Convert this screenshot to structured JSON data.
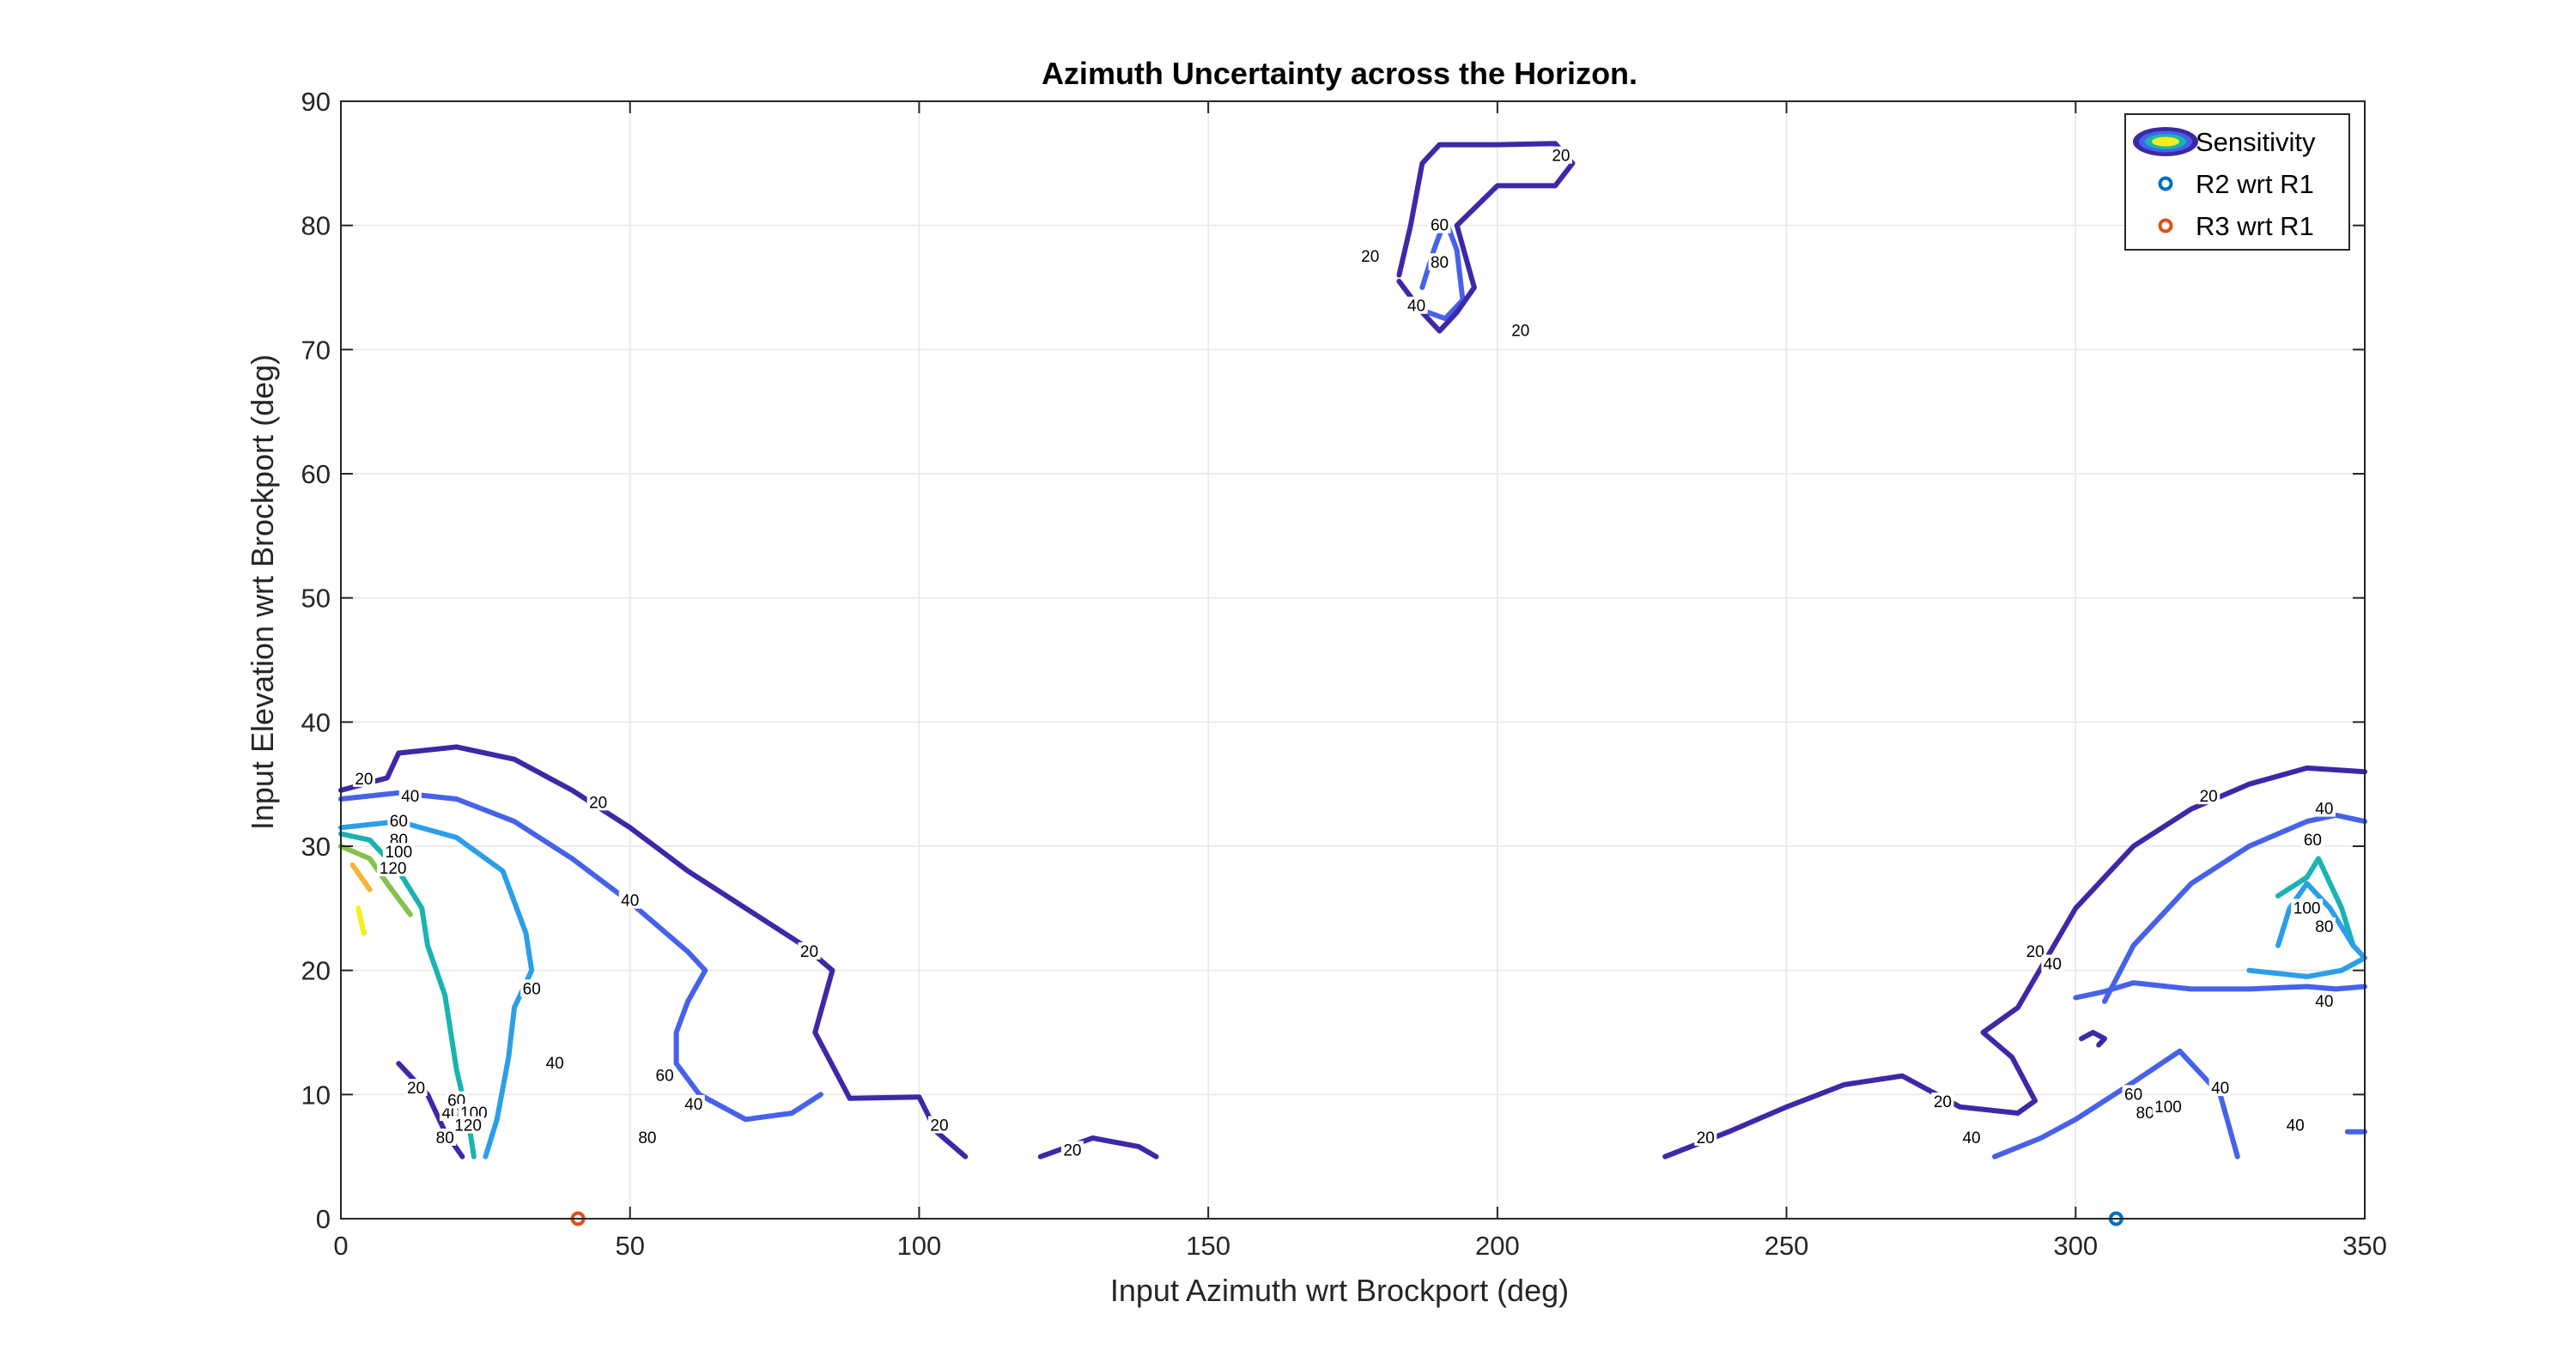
{
  "chart_data": {
    "type": "contour",
    "title": "Azimuth Uncertainty across the Horizon.",
    "xlabel": "Input Azimuth wrt Brockport (deg)",
    "ylabel": "Input Elevation wrt Brockport (deg)",
    "xlim": [
      0,
      350
    ],
    "ylim": [
      0,
      90
    ],
    "xticks": [
      "0",
      "50",
      "100",
      "150",
      "200",
      "250",
      "300",
      "350"
    ],
    "yticks": [
      "0",
      "10",
      "20",
      "30",
      "40",
      "50",
      "60",
      "70",
      "80",
      "90"
    ],
    "grid": true,
    "legend_position": "top-right",
    "legend": [
      "Sensitivity",
      "R2 wrt R1",
      "R3 wrt R1"
    ],
    "colors": {
      "20": "#3a2aa8",
      "40": "#4661ea",
      "60": "#2c9ee8",
      "80": "#1ab3b2",
      "100": "#84c24d",
      "120": "#f8b436",
      "140": "#f2ef1a",
      "r2": "#0072bd",
      "r3": "#d95319",
      "grid": "#e6e6e6",
      "axis": "#262626"
    },
    "contours": [
      {
        "level": 20,
        "points": [
          [
            0,
            34.5
          ],
          [
            8,
            35.5
          ],
          [
            10,
            37.5
          ],
          [
            20,
            38
          ],
          [
            30,
            37
          ],
          [
            40,
            34.5
          ],
          [
            50,
            31.5
          ],
          [
            60,
            28
          ],
          [
            70,
            25
          ],
          [
            80,
            22
          ],
          [
            85,
            20
          ],
          [
            82,
            15
          ],
          [
            88,
            9.7
          ],
          [
            100,
            9.8
          ],
          [
            103,
            7
          ],
          [
            108,
            5
          ]
        ]
      },
      {
        "level": 20,
        "points": [
          [
            121,
            5
          ],
          [
            130,
            6.5
          ],
          [
            138,
            5.8
          ],
          [
            141,
            5
          ]
        ]
      },
      {
        "level": 20,
        "points": [
          [
            10,
            12.5
          ],
          [
            15,
            10
          ],
          [
            18,
            7
          ],
          [
            21,
            5
          ]
        ]
      },
      {
        "level": 20,
        "points": [
          [
            229,
            5
          ],
          [
            240,
            7
          ],
          [
            250,
            9
          ],
          [
            260,
            10.8
          ],
          [
            270,
            11.5
          ],
          [
            280,
            9
          ],
          [
            290,
            8.5
          ],
          [
            293,
            9.5
          ],
          [
            289,
            13
          ],
          [
            284,
            15
          ],
          [
            290,
            17
          ],
          [
            295,
            21
          ],
          [
            300,
            25
          ],
          [
            310,
            30
          ],
          [
            320,
            33
          ],
          [
            330,
            35
          ],
          [
            340,
            36.3
          ],
          [
            350,
            36
          ]
        ]
      },
      {
        "level": 20,
        "points": [
          [
            301,
            14.5
          ],
          [
            303,
            15
          ],
          [
            305,
            14.5
          ],
          [
            304,
            14
          ]
        ]
      },
      {
        "level": 20,
        "points": [
          [
            183,
            76
          ],
          [
            185,
            80
          ],
          [
            187,
            85
          ],
          [
            190,
            86.5
          ],
          [
            200,
            86.5
          ],
          [
            210,
            86.6
          ],
          [
            213,
            85
          ],
          [
            210,
            83.2
          ],
          [
            200,
            83.2
          ],
          [
            193,
            80
          ],
          [
            196,
            75
          ],
          [
            193,
            73
          ],
          [
            190,
            71.5
          ],
          [
            187,
            73
          ],
          [
            183,
            75.5
          ]
        ]
      },
      {
        "level": 40,
        "points": [
          [
            0,
            33.8
          ],
          [
            10,
            34.3
          ],
          [
            20,
            33.8
          ],
          [
            30,
            32
          ],
          [
            40,
            29
          ],
          [
            50,
            25.5
          ],
          [
            60,
            21.5
          ],
          [
            63,
            20
          ],
          [
            60,
            17.5
          ],
          [
            58,
            15
          ],
          [
            58,
            12.5
          ],
          [
            62,
            10
          ],
          [
            70,
            8
          ],
          [
            78,
            8.5
          ],
          [
            83,
            10
          ]
        ]
      },
      {
        "level": 40,
        "points": [
          [
            300,
            17.8
          ],
          [
            305,
            18.3
          ],
          [
            310,
            19
          ],
          [
            320,
            18.5
          ],
          [
            330,
            18.5
          ],
          [
            340,
            18.7
          ],
          [
            345,
            18.5
          ],
          [
            350,
            18.7
          ]
        ]
      },
      {
        "level": 40,
        "points": [
          [
            305,
            17.5
          ],
          [
            310,
            22
          ],
          [
            320,
            27
          ],
          [
            330,
            30
          ],
          [
            340,
            32
          ],
          [
            345,
            32.5
          ],
          [
            350,
            32
          ]
        ]
      },
      {
        "level": 40,
        "points": [
          [
            286,
            5
          ],
          [
            294,
            6.5
          ],
          [
            300,
            8
          ],
          [
            310,
            11
          ],
          [
            318,
            13.5
          ],
          [
            325,
            10
          ],
          [
            328,
            5
          ]
        ]
      },
      {
        "level": 40,
        "points": [
          [
            347,
            7
          ],
          [
            350,
            7
          ]
        ]
      },
      {
        "level": 40,
        "points": [
          [
            187,
            75
          ],
          [
            189,
            78
          ],
          [
            191,
            80.5
          ],
          [
            193,
            78
          ],
          [
            194,
            74
          ],
          [
            191,
            72.5
          ],
          [
            188,
            73
          ]
        ]
      },
      {
        "level": 60,
        "points": [
          [
            0,
            31.5
          ],
          [
            10,
            32
          ],
          [
            20,
            30.7
          ],
          [
            28,
            28
          ],
          [
            32,
            23
          ],
          [
            33,
            20
          ],
          [
            30,
            17
          ],
          [
            29,
            13
          ],
          [
            27,
            8
          ],
          [
            25,
            5
          ]
        ]
      },
      {
        "level": 60,
        "points": [
          [
            330,
            20
          ],
          [
            340,
            19.5
          ],
          [
            346,
            20
          ],
          [
            350,
            21
          ],
          [
            348,
            22
          ],
          [
            344,
            25
          ],
          [
            340,
            27
          ],
          [
            337,
            25
          ],
          [
            335,
            22
          ]
        ]
      },
      {
        "level": 80,
        "points": [
          [
            0,
            31
          ],
          [
            5,
            30.5
          ],
          [
            10,
            28
          ],
          [
            14,
            25
          ],
          [
            15,
            22
          ],
          [
            18,
            18
          ],
          [
            20,
            12
          ],
          [
            22,
            8
          ],
          [
            23,
            5
          ]
        ]
      },
      {
        "level": 80,
        "points": [
          [
            335,
            26
          ],
          [
            340,
            27.5
          ],
          [
            342,
            29
          ],
          [
            346,
            25
          ],
          [
            348,
            22
          ]
        ]
      },
      {
        "level": 100,
        "points": [
          [
            0,
            30
          ],
          [
            5,
            29
          ],
          [
            8,
            27
          ],
          [
            12,
            24.5
          ]
        ]
      },
      {
        "level": 120,
        "points": [
          [
            2,
            28.5
          ],
          [
            5,
            26.5
          ]
        ]
      },
      {
        "level": 140,
        "points": [
          [
            3,
            25
          ],
          [
            4,
            23
          ]
        ]
      }
    ],
    "contour_labels": [
      {
        "text": "20",
        "x": 4,
        "y": 35.4
      },
      {
        "text": "20",
        "x": 44.5,
        "y": 33.5
      },
      {
        "text": "20",
        "x": 81,
        "y": 21.5
      },
      {
        "text": "20",
        "x": 103.5,
        "y": 7.5
      },
      {
        "text": "20",
        "x": 126.5,
        "y": 5.5
      },
      {
        "text": "20",
        "x": 13,
        "y": 10.5
      },
      {
        "text": "20",
        "x": 236,
        "y": 6.5
      },
      {
        "text": "20",
        "x": 277,
        "y": 9.4
      },
      {
        "text": "20",
        "x": 293,
        "y": 21.5
      },
      {
        "text": "20",
        "x": 323,
        "y": 34
      },
      {
        "text": "20",
        "x": 178,
        "y": 77.5
      },
      {
        "text": "20",
        "x": 211,
        "y": 85.6
      },
      {
        "text": "20",
        "x": 204,
        "y": 71.5
      },
      {
        "text": "40",
        "x": 12,
        "y": 34
      },
      {
        "text": "40",
        "x": 50,
        "y": 25.6
      },
      {
        "text": "40",
        "x": 61,
        "y": 9.2
      },
      {
        "text": "40",
        "x": 37,
        "y": 12.5
      },
      {
        "text": "40",
        "x": 19,
        "y": 8.5
      },
      {
        "text": "40",
        "x": 296,
        "y": 20.5
      },
      {
        "text": "40",
        "x": 343,
        "y": 33
      },
      {
        "text": "40",
        "x": 343,
        "y": 17.5
      },
      {
        "text": "40",
        "x": 325,
        "y": 10.5
      },
      {
        "text": "40",
        "x": 282,
        "y": 6.5
      },
      {
        "text": "40",
        "x": 338,
        "y": 7.5
      },
      {
        "text": "40",
        "x": 186,
        "y": 73.5
      },
      {
        "text": "60",
        "x": 10,
        "y": 32
      },
      {
        "text": "60",
        "x": 33,
        "y": 18.5
      },
      {
        "text": "60",
        "x": 56,
        "y": 11.5
      },
      {
        "text": "60",
        "x": 20,
        "y": 9.5
      },
      {
        "text": "60",
        "x": 310,
        "y": 10
      },
      {
        "text": "60",
        "x": 341,
        "y": 30.5
      },
      {
        "text": "60",
        "x": 190,
        "y": 80
      },
      {
        "text": "80",
        "x": 10,
        "y": 30.5
      },
      {
        "text": "80",
        "x": 53,
        "y": 6.5
      },
      {
        "text": "80",
        "x": 18,
        "y": 6.5
      },
      {
        "text": "80",
        "x": 312,
        "y": 8.5
      },
      {
        "text": "80",
        "x": 343,
        "y": 23.5
      },
      {
        "text": "80",
        "x": 190,
        "y": 77
      },
      {
        "text": "100",
        "x": 10,
        "y": 29.5
      },
      {
        "text": "100",
        "x": 23,
        "y": 8.5
      },
      {
        "text": "100",
        "x": 316,
        "y": 9
      },
      {
        "text": "100",
        "x": 340,
        "y": 25
      },
      {
        "text": "120",
        "x": 9,
        "y": 28.2
      },
      {
        "text": "120",
        "x": 22,
        "y": 7.5
      }
    ],
    "series": [
      {
        "name": "R2 wrt R1",
        "x": [
          307
        ],
        "y": [
          0
        ]
      },
      {
        "name": "R3 wrt R1",
        "x": [
          41
        ],
        "y": [
          0
        ]
      }
    ]
  }
}
